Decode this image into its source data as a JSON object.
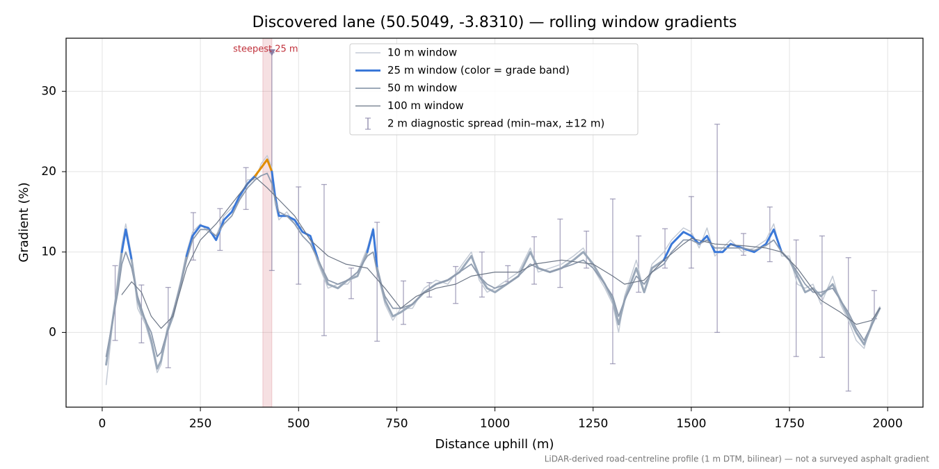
{
  "chart_data": {
    "type": "line",
    "title": "Discovered lane (50.5049, -3.8310) — rolling window gradients",
    "x_label": "Distance uphill (m)",
    "y_label": "Gradient (%)",
    "footnote": "LiDAR-derived road-centreline profile (1 m DTM, bilinear) — not a surveyed asphalt gradient",
    "xlim": [
      -92,
      2090
    ],
    "ylim": [
      -9.3,
      36.6
    ],
    "xticks": [
      0,
      250,
      500,
      750,
      1000,
      1250,
      1500,
      1750,
      2000
    ],
    "yticks": [
      0,
      10,
      20,
      30
    ],
    "grid": true,
    "legend": "upper center",
    "grade_thresholds": [
      10,
      20
    ],
    "grade_colors": [
      "#9aa8b9",
      "#3a78d8",
      "#e08c00"
    ],
    "series": [
      {
        "name": "10 m window",
        "color": "#c3cad5",
        "width": 1.5,
        "x": [
          10,
          25,
          40,
          50,
          60,
          75,
          90,
          100,
          110,
          125,
          140,
          150,
          165,
          180,
          200,
          215,
          230,
          250,
          270,
          290,
          310,
          330,
          350,
          370,
          390,
          405,
          420,
          432,
          440,
          450,
          470,
          490,
          510,
          530,
          550,
          575,
          600,
          625,
          650,
          675,
          690,
          700,
          720,
          740,
          760,
          790,
          820,
          850,
          880,
          910,
          940,
          960,
          980,
          1000,
          1030,
          1060,
          1090,
          1110,
          1140,
          1170,
          1200,
          1225,
          1250,
          1280,
          1300,
          1315,
          1330,
          1360,
          1380,
          1400,
          1430,
          1450,
          1480,
          1500,
          1520,
          1540,
          1560,
          1580,
          1600,
          1630,
          1660,
          1690,
          1710,
          1730,
          1750,
          1770,
          1790,
          1810,
          1830,
          1860,
          1880,
          1900,
          1920,
          1940,
          1960,
          1980
        ],
        "values": [
          -6.5,
          0.5,
          7,
          11,
          13.5,
          9.5,
          3,
          2,
          1,
          -1.5,
          -5,
          -4,
          0.5,
          2.5,
          6.5,
          10,
          12.5,
          13.5,
          12.5,
          12,
          14.5,
          15.5,
          16.5,
          19,
          19,
          21,
          22,
          20.5,
          16,
          14,
          15,
          13.5,
          13,
          11.5,
          8.5,
          5.5,
          6,
          6,
          7.5,
          10.5,
          13,
          7.5,
          3.5,
          1.5,
          3,
          3,
          5.5,
          6.5,
          6,
          8,
          10,
          6.5,
          5,
          5.5,
          6.5,
          7.5,
          10.5,
          7.5,
          8,
          8.5,
          9.5,
          10.5,
          8,
          5.5,
          3.5,
          0,
          4.5,
          9,
          5,
          8.5,
          10,
          11.5,
          13,
          12.5,
          10.5,
          13,
          9.5,
          10.5,
          11.5,
          10,
          10.5,
          11.5,
          13.5,
          9.5,
          9.5,
          6,
          5.5,
          6,
          3.5,
          7,
          3.5,
          1.5,
          -1,
          -2,
          1.5,
          3.2
        ]
      },
      {
        "name": "25 m window (color = grade band)",
        "color": "#3a78d8",
        "width": 3,
        "graded": true,
        "x": [
          10,
          25,
          40,
          50,
          60,
          75,
          90,
          100,
          110,
          125,
          140,
          150,
          165,
          180,
          200,
          215,
          230,
          250,
          270,
          290,
          310,
          330,
          350,
          370,
          390,
          405,
          420,
          432,
          440,
          450,
          470,
          490,
          510,
          530,
          550,
          575,
          600,
          625,
          650,
          675,
          690,
          700,
          720,
          740,
          760,
          790,
          820,
          850,
          880,
          910,
          940,
          960,
          980,
          1000,
          1030,
          1060,
          1090,
          1110,
          1140,
          1170,
          1200,
          1225,
          1250,
          1280,
          1300,
          1315,
          1330,
          1360,
          1380,
          1400,
          1430,
          1450,
          1480,
          1500,
          1520,
          1540,
          1560,
          1580,
          1600,
          1630,
          1660,
          1690,
          1710,
          1730,
          1750,
          1770,
          1790,
          1810,
          1830,
          1860,
          1880,
          1900,
          1920,
          1940,
          1960,
          1980
        ],
        "values": [
          -4,
          1,
          6,
          10,
          12.8,
          9,
          4,
          2.5,
          1.5,
          -1,
          -4.5,
          -3.5,
          0,
          2,
          6,
          9.5,
          12,
          13.3,
          13,
          11.5,
          14,
          15,
          17,
          18.5,
          19.5,
          20.5,
          21.5,
          20,
          17,
          14.5,
          14.5,
          14,
          12.5,
          12,
          9,
          6,
          5.5,
          6.5,
          7,
          10,
          12.8,
          8,
          4,
          2,
          2.5,
          3.5,
          5,
          6,
          6.5,
          7.5,
          9.5,
          7,
          5.5,
          5,
          6,
          7,
          10,
          8,
          7.5,
          8,
          9,
          10,
          8.5,
          6,
          4,
          1,
          4,
          8,
          5,
          8,
          9,
          11,
          12.5,
          12,
          11,
          12,
          10,
          10,
          11,
          10.5,
          10,
          11,
          12.8,
          10,
          9,
          7,
          5,
          5.5,
          4.5,
          6,
          4,
          2,
          0,
          -1.5,
          1,
          3
        ]
      },
      {
        "name": "50 m window",
        "color": "#8e9bae",
        "width": 1.8,
        "x": [
          10,
          25,
          40,
          50,
          60,
          75,
          90,
          100,
          110,
          125,
          140,
          150,
          165,
          180,
          200,
          215,
          230,
          250,
          270,
          290,
          310,
          330,
          350,
          370,
          390,
          405,
          420,
          432,
          440,
          450,
          470,
          490,
          510,
          530,
          550,
          575,
          600,
          625,
          650,
          675,
          690,
          700,
          720,
          740,
          760,
          790,
          820,
          850,
          880,
          910,
          940,
          960,
          980,
          1000,
          1030,
          1060,
          1090,
          1110,
          1140,
          1170,
          1200,
          1225,
          1250,
          1280,
          1300,
          1315,
          1330,
          1360,
          1380,
          1400,
          1430,
          1450,
          1480,
          1500,
          1520,
          1540,
          1560,
          1580,
          1600,
          1630,
          1660,
          1690,
          1710,
          1730,
          1750,
          1770,
          1790,
          1810,
          1830,
          1860,
          1880,
          1900,
          1920,
          1940,
          1960,
          1980
        ],
        "values": [
          -3,
          1,
          5,
          8.5,
          10,
          8,
          4.5,
          3,
          1.5,
          0,
          -3,
          -2.5,
          0,
          2.5,
          6,
          9,
          11.5,
          12.8,
          12.8,
          12,
          13.5,
          14.5,
          16.5,
          18,
          19,
          19.5,
          19.8,
          18.5,
          16.5,
          15,
          14.5,
          13.5,
          12,
          11,
          9,
          6.5,
          6,
          6.5,
          7.5,
          9.5,
          10,
          7.5,
          4.5,
          3,
          3,
          3.5,
          5,
          6,
          6.5,
          7.5,
          8.5,
          7,
          6,
          5.5,
          6,
          7,
          8.5,
          8,
          7.5,
          8,
          8.5,
          9,
          8,
          6,
          4.5,
          2,
          4,
          7,
          6,
          7.5,
          8.5,
          10,
          11.5,
          11.5,
          11,
          11.5,
          10.5,
          10.5,
          10.5,
          10.5,
          10.2,
          10.8,
          11.5,
          10,
          9,
          7.5,
          6,
          5,
          5,
          5.5,
          4,
          2.5,
          0.5,
          -1,
          1,
          3
        ]
      },
      {
        "name": "100 m window",
        "color": "#6b7585",
        "width": 1.2,
        "x": [
          50,
          75,
          100,
          125,
          150,
          180,
          215,
          250,
          290,
          330,
          370,
          390,
          420,
          450,
          490,
          530,
          575,
          620,
          675,
          720,
          760,
          800,
          850,
          900,
          940,
          1000,
          1060,
          1100,
          1170,
          1250,
          1300,
          1330,
          1380,
          1430,
          1480,
          1500,
          1560,
          1630,
          1690,
          1730,
          1770,
          1830,
          1880,
          1920,
          1960,
          1980
        ],
        "values": [
          4.7,
          6.3,
          5,
          2,
          0.5,
          2,
          8,
          11.5,
          13.5,
          16,
          18.5,
          19.3,
          18,
          16.5,
          14.5,
          11.5,
          9.5,
          8.5,
          8,
          5.5,
          3,
          4.5,
          5.5,
          6,
          7,
          7.5,
          7.5,
          8.5,
          9,
          8.5,
          7,
          6,
          6.5,
          9,
          11,
          11.7,
          11,
          10.8,
          10.5,
          10,
          8,
          4,
          2.5,
          1,
          1.5,
          3
        ]
      }
    ],
    "errorbars": {
      "name": "2 m diagnostic spread (min–max, ±12 m)",
      "color": "#8a86a8",
      "x": [
        33,
        100,
        168,
        232,
        300,
        366,
        432,
        500,
        565,
        634,
        700,
        767,
        833,
        900,
        967,
        1033,
        1100,
        1166,
        1233,
        1300,
        1366,
        1433,
        1500,
        1566,
        1633,
        1700,
        1767,
        1833,
        1900,
        1966
      ],
      "min": [
        -1,
        -1.3,
        -4.4,
        9,
        10.2,
        15.3,
        7.7,
        6,
        -0.4,
        4.2,
        -1.1,
        1,
        4.4,
        3.6,
        4.4,
        6.3,
        6,
        5.6,
        8,
        -3.9,
        5,
        8,
        8,
        0,
        9.6,
        8.8,
        -3,
        -3.1,
        -7.3,
        1.7
      ],
      "max": [
        8.3,
        5.9,
        5.6,
        14.9,
        15.4,
        20.5,
        34.8,
        18.1,
        18.4,
        8,
        13.7,
        6.4,
        6.2,
        8.2,
        10,
        8.3,
        11.9,
        14.1,
        12.6,
        16.6,
        12,
        12.9,
        16.9,
        25.9,
        12.3,
        15.6,
        11.5,
        12,
        9.3,
        5.2
      ]
    },
    "highlight": {
      "label": "steepest 25 m",
      "x0": 409,
      "x1": 432,
      "y": 34.8,
      "color": "#c0303a"
    }
  }
}
